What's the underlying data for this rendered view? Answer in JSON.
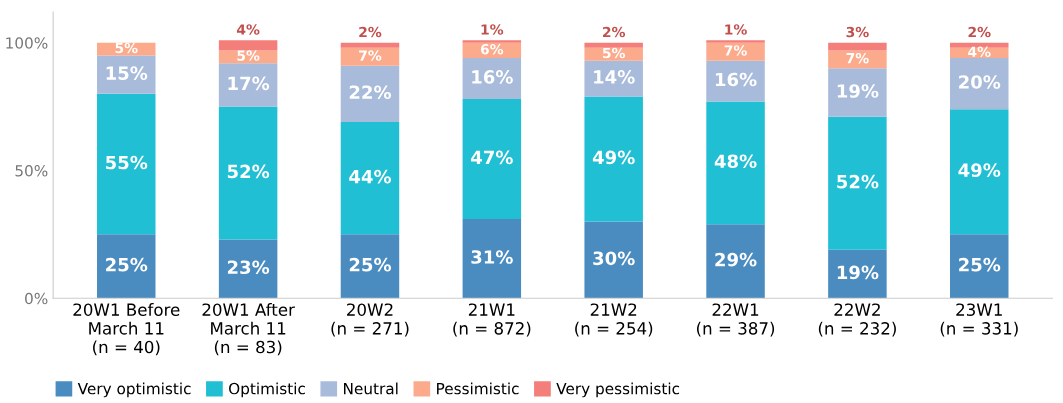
{
  "chart_data": {
    "type": "bar",
    "stacked": true,
    "categories": [
      "20W1 Before\nMarch 11\n(n = 40)",
      "20W1 After\nMarch 11\n(n = 83)",
      "20W2\n(n = 271)",
      "21W1\n(n = 872)",
      "21W2\n(n = 254)",
      "22W1\n(n = 387)",
      "22W2\n(n = 232)",
      "23W1\n(n = 331)"
    ],
    "series": [
      {
        "name": "Very optimistic",
        "color": "#4a8cc0",
        "values": [
          25,
          23,
          25,
          31,
          30,
          29,
          19,
          25
        ],
        "value_labels": [
          "25%",
          "23%",
          "25%",
          "31%",
          "30%",
          "29%",
          "19%",
          "25%"
        ]
      },
      {
        "name": "Optimistic",
        "color": "#20bfd3",
        "values": [
          55,
          52,
          44,
          47,
          49,
          48,
          52,
          49
        ],
        "value_labels": [
          "55%",
          "52%",
          "44%",
          "47%",
          "49%",
          "48%",
          "52%",
          "49%"
        ]
      },
      {
        "name": "Neutral",
        "color": "#a9bbdb",
        "values": [
          15,
          17,
          22,
          16,
          14,
          16,
          19,
          20
        ],
        "value_labels": [
          "15%",
          "17%",
          "22%",
          "16%",
          "14%",
          "16%",
          "19%",
          "20%"
        ]
      },
      {
        "name": "Pessimistic",
        "color": "#fbaa8c",
        "values": [
          5,
          5,
          7,
          6,
          5,
          7,
          7,
          4
        ],
        "value_labels": [
          "5%",
          "5%",
          "7%",
          "6%",
          "5%",
          "7%",
          "7%",
          "4%"
        ]
      },
      {
        "name": "Very pessimistic",
        "color": "#f47e7a",
        "values": [
          0,
          4,
          2,
          1,
          2,
          1,
          3,
          2
        ],
        "value_labels": [
          null,
          "4%",
          "2%",
          "1%",
          "2%",
          "1%",
          "3%",
          "2%"
        ]
      }
    ],
    "ylim": [
      0,
      112
    ],
    "yticks": [
      {
        "value": 0,
        "label": "0%"
      },
      {
        "value": 50,
        "label": "50%"
      },
      {
        "value": 100,
        "label": "100%"
      }
    ],
    "grid": false,
    "legend": "bottom left"
  }
}
